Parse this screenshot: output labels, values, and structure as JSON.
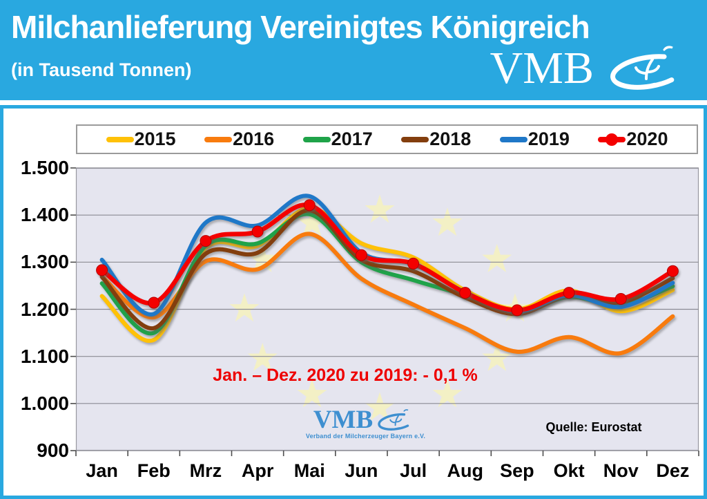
{
  "header": {
    "title": "Milchanlieferung Vereinigtes Königreich",
    "subtitle": "(in Tausend Tonnen)",
    "logo_text": "VMB"
  },
  "chart_data": {
    "type": "line",
    "title": "Milchanlieferung Vereinigtes Königreich (in Tausend Tonnen)",
    "categories": [
      "Jan",
      "Feb",
      "Mrz",
      "Apr",
      "Mai",
      "Jun",
      "Jul",
      "Aug",
      "Sep",
      "Okt",
      "Nov",
      "Dez"
    ],
    "series": [
      {
        "name": "2015",
        "color": "#FFC107",
        "marker": false,
        "values": [
          1228,
          1135,
          1330,
          1335,
          1415,
          1340,
          1310,
          1240,
          1200,
          1240,
          1196,
          1241
        ]
      },
      {
        "name": "2016",
        "color": "#F87B0E",
        "marker": false,
        "values": [
          1270,
          1183,
          1302,
          1285,
          1360,
          1265,
          1210,
          1160,
          1110,
          1141,
          1107,
          1185
        ]
      },
      {
        "name": "2017",
        "color": "#1FA349",
        "marker": false,
        "values": [
          1255,
          1150,
          1335,
          1340,
          1402,
          1300,
          1262,
          1230,
          1194,
          1226,
          1209,
          1249
        ]
      },
      {
        "name": "2018",
        "color": "#833E0E",
        "marker": false,
        "values": [
          1269,
          1160,
          1318,
          1320,
          1410,
          1305,
          1281,
          1225,
          1190,
          1229,
          1215,
          1266
        ]
      },
      {
        "name": "2019",
        "color": "#1F78C8",
        "marker": false,
        "values": [
          1305,
          1190,
          1384,
          1378,
          1440,
          1320,
          1296,
          1236,
          1196,
          1230,
          1205,
          1256
        ]
      },
      {
        "name": "2020",
        "color": "#F40000",
        "marker": true,
        "values": [
          1283,
          1214,
          1345,
          1365,
          1421,
          1315,
          1297,
          1235,
          1198,
          1235,
          1222,
          1281
        ]
      }
    ],
    "ylim": [
      900,
      1500
    ],
    "yticks": [
      1500,
      1400,
      1300,
      1200,
      1100,
      1000,
      900
    ],
    "ytick_labels": [
      "1.500",
      "1.400",
      "1.300",
      "1.200",
      "1.100",
      "1.000",
      "900"
    ],
    "grid": "horizontal",
    "legend_position": "top",
    "annotation": "Jan. – Dez. 2020 zu 2019: - 0,1 %",
    "source": "Quelle: Eurostat",
    "watermark": {
      "text": "VMB",
      "caption": "Verband der Milcherzeuger Bayern e.V."
    }
  },
  "colors": {
    "header_bg": "#29A8E0",
    "frame_border": "#29A8E0",
    "plot_bg": "#E5E5EF",
    "gridline": "#8A8A93",
    "stars": "#F6F2BE",
    "annotation": "#EE0000",
    "watermark": "#3E8FD0"
  }
}
